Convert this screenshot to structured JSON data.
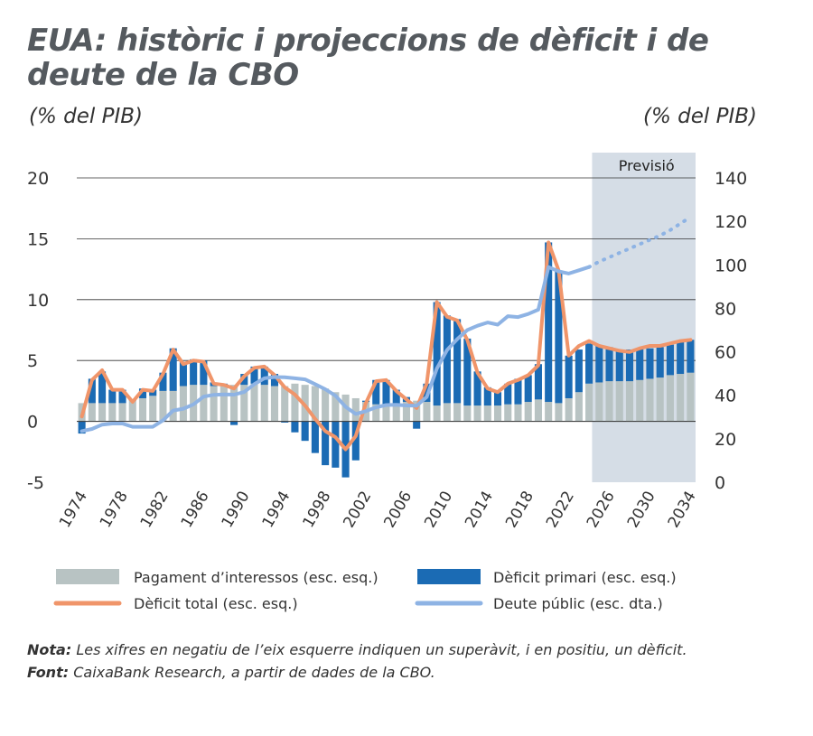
{
  "title": "EUA: històric i projeccions de dèficit i de deute de la CBO",
  "unit_left": "(% del PIB)",
  "unit_right": "(% del PIB)",
  "forecast_label": "Previsió",
  "legend": {
    "interest": "Pagament d’interessos (esc. esq.)",
    "primary": "Dèficit primari (esc. esq.)",
    "total": "Dèficit total (esc. esq.)",
    "debt": "Deute públic (esc. dta.)"
  },
  "note_label": "Nota:",
  "note_text": "Les xifres en negatiu de l’eix esquerre indiquen un superàvit, i en positiu, un dèficit.",
  "source_label": "Font:",
  "source_text": "CaixaBank Research, a partir de dades de la CBO.",
  "colors": {
    "interest": "#b8c3c3",
    "primary": "#1b6bb4",
    "total": "#f0956a",
    "debt": "#8eb3e4",
    "forecast_band": "#d5dde6",
    "grid": "#333333"
  },
  "chart_data": {
    "type": "bar",
    "years": [
      1974,
      1975,
      1976,
      1977,
      1978,
      1979,
      1980,
      1981,
      1982,
      1983,
      1984,
      1985,
      1986,
      1987,
      1988,
      1989,
      1990,
      1991,
      1992,
      1993,
      1994,
      1995,
      1996,
      1997,
      1998,
      1999,
      2000,
      2001,
      2002,
      2003,
      2004,
      2005,
      2006,
      2007,
      2008,
      2009,
      2010,
      2011,
      2012,
      2013,
      2014,
      2015,
      2016,
      2017,
      2018,
      2019,
      2020,
      2021,
      2022,
      2023,
      2024,
      2025,
      2026,
      2027,
      2028,
      2029,
      2030,
      2031,
      2032,
      2033,
      2034
    ],
    "x_tick_labels": [
      "1974",
      "1978",
      "1982",
      "1986",
      "1990",
      "1994",
      "1998",
      "2002",
      "2006",
      "2010",
      "2014",
      "2018",
      "2022",
      "2026",
      "2030",
      "2034"
    ],
    "y_left": {
      "min": -5,
      "max": 20,
      "ticks": [
        -5,
        0,
        5,
        10,
        15,
        20
      ]
    },
    "y_right": {
      "min": 0,
      "max": 140,
      "ticks": [
        0,
        20,
        40,
        60,
        80,
        100,
        120,
        140
      ]
    },
    "forecast_start": 2025,
    "grid": true,
    "legend_position": "bottom",
    "series": [
      {
        "name": "Pagament d’interessos (esc. esq.)",
        "type": "bar",
        "axis": "left",
        "values": [
          1.5,
          1.5,
          1.5,
          1.5,
          1.5,
          1.7,
          1.9,
          2.1,
          2.5,
          2.5,
          2.9,
          3.0,
          3.0,
          2.9,
          2.9,
          3.0,
          3.0,
          3.1,
          3.0,
          2.9,
          2.9,
          3.1,
          3.0,
          2.9,
          2.7,
          2.4,
          2.2,
          1.9,
          1.6,
          1.4,
          1.3,
          1.4,
          1.6,
          1.7,
          1.6,
          1.3,
          1.5,
          1.5,
          1.3,
          1.3,
          1.3,
          1.3,
          1.4,
          1.4,
          1.6,
          1.8,
          1.6,
          1.5,
          1.9,
          2.4,
          3.1,
          3.2,
          3.3,
          3.3,
          3.3,
          3.4,
          3.5,
          3.6,
          3.8,
          3.9,
          4.0
        ]
      },
      {
        "name": "Dèficit primari (esc. esq.)",
        "type": "bar",
        "axis": "left",
        "values": [
          -1.0,
          2.0,
          2.6,
          1.1,
          1.1,
          0.1,
          0.8,
          0.5,
          1.5,
          3.5,
          2.0,
          2.1,
          2.0,
          0.3,
          0.2,
          -0.3,
          0.9,
          1.4,
          1.5,
          1.0,
          -0.1,
          -0.9,
          -1.6,
          -2.6,
          -3.6,
          -3.8,
          -4.6,
          -3.2,
          0.1,
          2.0,
          2.1,
          1.2,
          0.4,
          -0.6,
          1.5,
          8.5,
          7.2,
          6.9,
          5.5,
          2.8,
          1.5,
          1.1,
          1.7,
          2.1,
          2.2,
          2.9,
          13.1,
          10.9,
          3.5,
          3.5,
          3.3,
          3.0,
          2.8,
          2.6,
          2.6,
          2.6,
          2.5,
          2.5,
          2.5,
          2.6,
          2.7
        ]
      },
      {
        "name": "Dèficit total (esc. esq.)",
        "type": "line",
        "axis": "left",
        "values": [
          0.4,
          3.4,
          4.2,
          2.6,
          2.6,
          1.6,
          2.6,
          2.5,
          3.9,
          5.9,
          4.7,
          5.0,
          4.9,
          3.1,
          3.0,
          2.7,
          3.7,
          4.4,
          4.5,
          3.8,
          2.8,
          2.2,
          1.3,
          0.2,
          -0.8,
          -1.3,
          -2.3,
          -1.2,
          1.5,
          3.3,
          3.4,
          2.5,
          1.8,
          1.1,
          3.1,
          9.8,
          8.6,
          8.3,
          6.7,
          4.0,
          2.7,
          2.4,
          3.1,
          3.4,
          3.8,
          4.6,
          14.7,
          12.4,
          5.4,
          6.2,
          6.6,
          6.2,
          6.0,
          5.8,
          5.7,
          6.0,
          6.2,
          6.2,
          6.4,
          6.6,
          6.7
        ]
      },
      {
        "name": "Deute públic (esc. dta.)",
        "type": "line",
        "axis": "right",
        "values": [
          23.5,
          24.5,
          26.5,
          27.0,
          27.0,
          25.5,
          25.5,
          25.5,
          28.5,
          33.0,
          33.8,
          35.8,
          39.4,
          40.2,
          40.4,
          40.3,
          41.5,
          45.1,
          47.8,
          48.4,
          48.3,
          47.8,
          47.3,
          45.1,
          42.8,
          39.8,
          34.7,
          31.4,
          32.7,
          34.5,
          35.5,
          35.6,
          35.3,
          35.2,
          39.2,
          52.3,
          60.8,
          65.8,
          70.0,
          72.0,
          73.5,
          72.5,
          76.4,
          76.0,
          77.4,
          79.4,
          99.0,
          97.0,
          96.0,
          97.5,
          99.0,
          101.5,
          103.5,
          105.5,
          107.5,
          109.5,
          111.5,
          113.5,
          116.0,
          119.0,
          122.0
        ]
      }
    ]
  }
}
